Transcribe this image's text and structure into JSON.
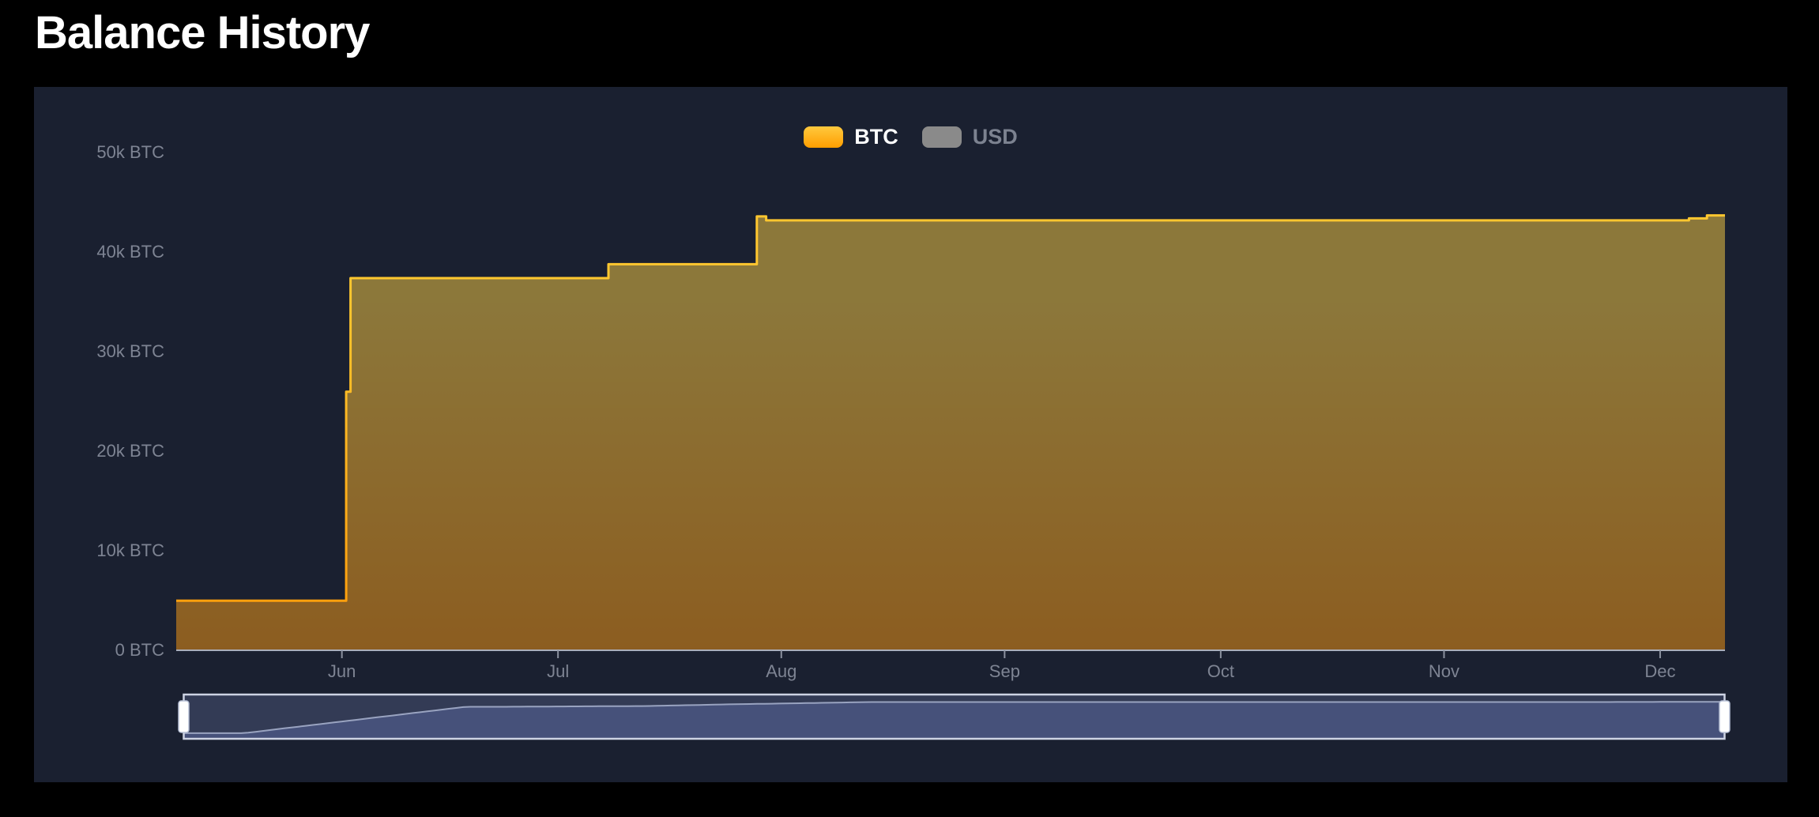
{
  "page": {
    "title": "Balance History",
    "background": "#000000",
    "panel_background": "#1a2030"
  },
  "legend": {
    "position": "top-center",
    "items": [
      {
        "label": "BTC",
        "active": true,
        "swatch_top": "#FFC93E",
        "swatch_bottom": "#FF9E00"
      },
      {
        "label": "USD",
        "active": false,
        "swatch_color": "#8a8a8a"
      }
    ]
  },
  "chart_data": {
    "type": "area",
    "title": "Balance History",
    "subtitle": "",
    "unit": "BTC",
    "legend_entries": [
      "BTC",
      "USD"
    ],
    "x_axis": {
      "tick_labels": [
        "Jun",
        "Jul",
        "Aug",
        "Sep",
        "Oct",
        "Nov",
        "Dec"
      ],
      "tick_days": [
        23,
        53,
        84,
        115,
        145,
        176,
        206
      ],
      "span_days": 215,
      "grid": false
    },
    "y_axis": {
      "tick_labels": [
        "50k BTC",
        "40k BTC",
        "30k BTC",
        "20k BTC",
        "10k BTC",
        "0 BTC"
      ],
      "tick_values": [
        50000,
        40000,
        30000,
        20000,
        10000,
        0
      ],
      "min": 0,
      "max": 50000,
      "grid": false
    },
    "series": [
      {
        "name": "BTC",
        "visible": true,
        "style": "step-area",
        "points_day_value": [
          [
            0,
            4900
          ],
          [
            23.6,
            4900
          ],
          [
            23.6,
            25900
          ],
          [
            24.2,
            25900
          ],
          [
            24.2,
            37300
          ],
          [
            60,
            37300
          ],
          [
            60,
            38700
          ],
          [
            80.6,
            38700
          ],
          [
            80.6,
            43500
          ],
          [
            81.9,
            43500
          ],
          [
            81.9,
            43100
          ],
          [
            210,
            43100
          ],
          [
            210,
            43300
          ],
          [
            212.5,
            43300
          ],
          [
            212.5,
            43600
          ],
          [
            215,
            43600
          ]
        ]
      },
      {
        "name": "USD",
        "visible": false,
        "points_day_value": []
      }
    ],
    "colors": {
      "line_top": "#FFC72F",
      "line_bottom": "#FF9503",
      "fill_top": "#FFCF45",
      "fill_bottom": "#FF9A10",
      "fill_opacity": 0.5,
      "axis_line": "#a9aeba",
      "tick_mark": "#8b919f",
      "tick_label": "#7e8493"
    }
  },
  "navigator": {
    "full_range_selected": true,
    "frame_color": "#cdd3e3",
    "track_fill": "#333b55",
    "area_fill": "#46517a",
    "line_color": "#99a3c0",
    "handle_fill": "#ffffff",
    "handle_border": "#b7c0d6"
  }
}
